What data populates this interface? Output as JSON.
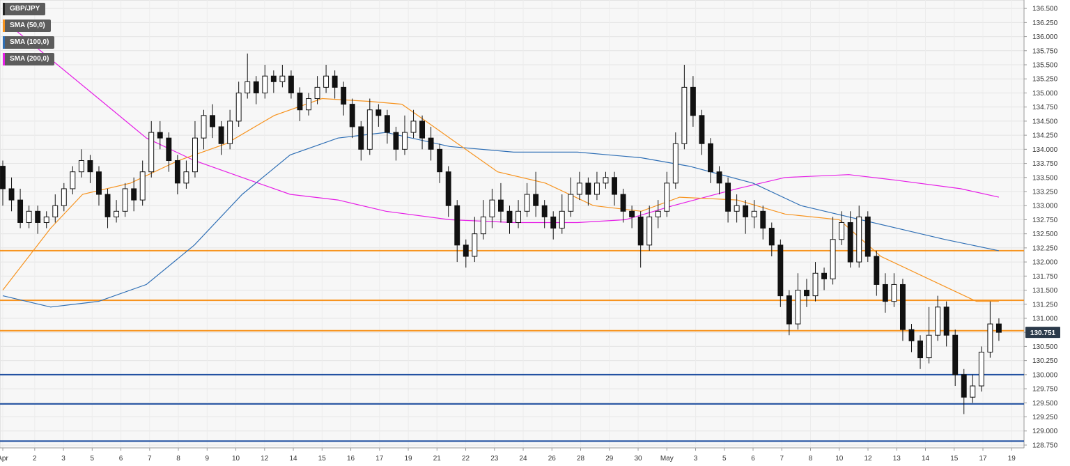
{
  "chart_data": {
    "type": "candlestick",
    "symbol": "GBP/JPY",
    "last_price_label": "130.751",
    "last_price": 130.751,
    "ylim": [
      128.7,
      136.65
    ],
    "y_ticks": [
      "136.500",
      "136.250",
      "136.000",
      "135.750",
      "135.500",
      "135.250",
      "135.000",
      "134.750",
      "134.500",
      "134.250",
      "134.000",
      "133.750",
      "133.500",
      "133.250",
      "133.000",
      "132.750",
      "132.500",
      "132.250",
      "132.000",
      "131.750",
      "131.500",
      "131.250",
      "131.000",
      "130.750",
      "130.500",
      "130.250",
      "130.000",
      "129.750",
      "129.500",
      "129.250",
      "129.000",
      "128.750"
    ],
    "x_ticks": [
      {
        "label": "Apr",
        "index": 0
      },
      {
        "label": "2",
        "index": 10
      },
      {
        "label": "3",
        "index": 19
      },
      {
        "label": "5",
        "index": 28
      },
      {
        "label": "6",
        "index": 37
      },
      {
        "label": "7",
        "index": 46
      },
      {
        "label": "8",
        "index": 55
      },
      {
        "label": "9",
        "index": 64
      },
      {
        "label": "10",
        "index": 73
      },
      {
        "label": "12",
        "index": 82
      },
      {
        "label": "14",
        "index": 91
      },
      {
        "label": "15",
        "index": 100
      },
      {
        "label": "16",
        "index": 109
      },
      {
        "label": "17",
        "index": 118
      },
      {
        "label": "19",
        "index": 127
      },
      {
        "label": "21",
        "index": 136
      },
      {
        "label": "22",
        "index": 145
      },
      {
        "label": "23",
        "index": 154
      },
      {
        "label": "24",
        "index": 163
      },
      {
        "label": "26",
        "index": 172
      },
      {
        "label": "28",
        "index": 181
      },
      {
        "label": "29",
        "index": 190
      },
      {
        "label": "30",
        "index": 199
      },
      {
        "label": "May",
        "index": 208
      },
      {
        "label": "3",
        "index": 217
      },
      {
        "label": "5",
        "index": 226
      },
      {
        "label": "6",
        "index": 235
      },
      {
        "label": "7",
        "index": 244
      },
      {
        "label": "8",
        "index": 253
      },
      {
        "label": "10",
        "index": 262
      },
      {
        "label": "12",
        "index": 271
      },
      {
        "label": "13",
        "index": 280
      },
      {
        "label": "14",
        "index": 289
      },
      {
        "label": "15",
        "index": 298
      },
      {
        "label": "17",
        "index": 307
      },
      {
        "label": "19",
        "index": 316
      }
    ],
    "x_count": 320,
    "legend": [
      {
        "label": "GBP/JPY",
        "color": "#222222"
      },
      {
        "label": "SMA (50,0)",
        "color": "#f7931e"
      },
      {
        "label": "SMA (100,0)",
        "color": "#2f6fb5"
      },
      {
        "label": "SMA (200,0)",
        "color": "#e61ee6"
      }
    ],
    "hlines": [
      {
        "value": 132.2,
        "color": "#f7931e"
      },
      {
        "value": 131.32,
        "color": "#f7931e"
      },
      {
        "value": 130.78,
        "color": "#f7931e"
      },
      {
        "value": 130.0,
        "color": "#1f4fa0"
      },
      {
        "value": 129.48,
        "color": "#1f4fa0"
      },
      {
        "value": 128.82,
        "color": "#1f4fa0"
      }
    ],
    "sma50": [
      [
        0,
        131.5
      ],
      [
        15,
        132.6
      ],
      [
        25,
        133.2
      ],
      [
        40,
        133.4
      ],
      [
        55,
        133.8
      ],
      [
        70,
        134.1
      ],
      [
        85,
        134.6
      ],
      [
        100,
        134.9
      ],
      [
        115,
        134.85
      ],
      [
        125,
        134.8
      ],
      [
        140,
        134.2
      ],
      [
        155,
        133.6
      ],
      [
        170,
        133.4
      ],
      [
        185,
        133.0
      ],
      [
        200,
        132.9
      ],
      [
        212,
        133.15
      ],
      [
        230,
        133.1
      ],
      [
        245,
        132.85
      ],
      [
        262,
        132.75
      ],
      [
        275,
        132.1
      ],
      [
        290,
        131.7
      ],
      [
        305,
        131.3
      ],
      [
        312,
        131.3
      ]
    ],
    "sma100": [
      [
        0,
        131.4
      ],
      [
        15,
        131.2
      ],
      [
        30,
        131.3
      ],
      [
        45,
        131.6
      ],
      [
        60,
        132.3
      ],
      [
        75,
        133.2
      ],
      [
        90,
        133.9
      ],
      [
        105,
        134.2
      ],
      [
        120,
        134.3
      ],
      [
        140,
        134.05
      ],
      [
        160,
        133.95
      ],
      [
        180,
        133.95
      ],
      [
        200,
        133.85
      ],
      [
        215,
        133.7
      ],
      [
        235,
        133.4
      ],
      [
        250,
        133.0
      ],
      [
        265,
        132.8
      ],
      [
        280,
        132.6
      ],
      [
        295,
        132.4
      ],
      [
        312,
        132.2
      ]
    ],
    "sma200": [
      [
        0,
        136.3
      ],
      [
        15,
        135.6
      ],
      [
        30,
        134.9
      ],
      [
        45,
        134.2
      ],
      [
        60,
        133.8
      ],
      [
        75,
        133.5
      ],
      [
        90,
        133.2
      ],
      [
        105,
        133.1
      ],
      [
        120,
        132.9
      ],
      [
        140,
        132.75
      ],
      [
        160,
        132.7
      ],
      [
        180,
        132.7
      ],
      [
        195,
        132.75
      ],
      [
        210,
        133.0
      ],
      [
        230,
        133.3
      ],
      [
        245,
        133.5
      ],
      [
        265,
        133.55
      ],
      [
        280,
        133.45
      ],
      [
        300,
        133.3
      ],
      [
        312,
        133.15
      ]
    ],
    "candles": [
      [
        133.7,
        133.3,
        133.8,
        133.0
      ],
      [
        133.3,
        133.1,
        133.5,
        132.9
      ],
      [
        133.1,
        132.7,
        133.3,
        132.6
      ],
      [
        132.7,
        132.9,
        133.0,
        132.6
      ],
      [
        132.9,
        132.7,
        133.0,
        132.5
      ],
      [
        132.7,
        132.8,
        132.9,
        132.6
      ],
      [
        132.8,
        133.0,
        133.2,
        132.7
      ],
      [
        133.0,
        133.3,
        133.4,
        132.9
      ],
      [
        133.3,
        133.6,
        133.7,
        133.2
      ],
      [
        133.6,
        133.8,
        134.0,
        133.5
      ],
      [
        133.8,
        133.6,
        133.9,
        133.4
      ],
      [
        133.6,
        133.2,
        133.7,
        133.0
      ],
      [
        133.2,
        132.8,
        133.3,
        132.6
      ],
      [
        132.8,
        132.9,
        133.1,
        132.7
      ],
      [
        132.9,
        133.3,
        133.4,
        132.8
      ],
      [
        133.3,
        133.1,
        133.5,
        132.9
      ],
      [
        133.1,
        133.6,
        133.8,
        133.0
      ],
      [
        133.6,
        134.3,
        134.5,
        133.5
      ],
      [
        134.3,
        134.2,
        134.5,
        134.0
      ],
      [
        134.2,
        133.8,
        134.3,
        133.6
      ],
      [
        133.8,
        133.4,
        133.9,
        133.2
      ],
      [
        133.4,
        133.6,
        133.8,
        133.3
      ],
      [
        133.6,
        134.2,
        134.5,
        133.5
      ],
      [
        134.2,
        134.6,
        134.7,
        134.0
      ],
      [
        134.6,
        134.4,
        134.8,
        134.2
      ],
      [
        134.4,
        134.1,
        134.5,
        133.9
      ],
      [
        134.1,
        134.5,
        134.7,
        134.0
      ],
      [
        134.5,
        135.0,
        135.2,
        134.4
      ],
      [
        135.0,
        135.2,
        135.7,
        134.9
      ],
      [
        135.2,
        135.0,
        135.3,
        134.8
      ],
      [
        135.0,
        135.3,
        135.5,
        134.9
      ],
      [
        135.3,
        135.2,
        135.4,
        135.0
      ],
      [
        135.2,
        135.3,
        135.5,
        135.1
      ],
      [
        135.3,
        135.0,
        135.4,
        134.9
      ],
      [
        135.0,
        134.7,
        135.1,
        134.5
      ],
      [
        134.7,
        134.9,
        135.0,
        134.6
      ],
      [
        134.9,
        135.1,
        135.3,
        134.8
      ],
      [
        135.1,
        135.3,
        135.5,
        135.0
      ],
      [
        135.3,
        135.1,
        135.4,
        134.9
      ],
      [
        135.1,
        134.8,
        135.2,
        134.6
      ],
      [
        134.8,
        134.4,
        134.9,
        134.2
      ],
      [
        134.4,
        134.0,
        134.5,
        133.8
      ],
      [
        134.0,
        134.7,
        134.9,
        133.9
      ],
      [
        134.7,
        134.6,
        134.8,
        134.4
      ],
      [
        134.6,
        134.3,
        134.7,
        134.1
      ],
      [
        134.3,
        134.0,
        134.4,
        133.8
      ],
      [
        134.0,
        134.3,
        134.6,
        133.9
      ],
      [
        134.3,
        134.5,
        134.7,
        134.2
      ],
      [
        134.5,
        134.2,
        134.6,
        134.0
      ],
      [
        134.2,
        134.0,
        134.4,
        133.8
      ],
      [
        134.0,
        133.6,
        134.1,
        133.4
      ],
      [
        133.6,
        133.0,
        133.7,
        132.8
      ],
      [
        133.0,
        132.3,
        133.1,
        132.0
      ],
      [
        132.3,
        132.1,
        132.4,
        131.9
      ],
      [
        132.1,
        132.5,
        132.8,
        132.0
      ],
      [
        132.5,
        132.8,
        133.1,
        132.4
      ],
      [
        132.8,
        133.1,
        133.3,
        132.6
      ],
      [
        133.1,
        132.9,
        133.4,
        132.7
      ],
      [
        132.9,
        132.7,
        133.0,
        132.5
      ],
      [
        132.7,
        132.9,
        133.1,
        132.6
      ],
      [
        132.9,
        133.2,
        133.4,
        132.8
      ],
      [
        133.2,
        133.0,
        133.6,
        132.8
      ],
      [
        133.0,
        132.8,
        133.1,
        132.6
      ],
      [
        132.8,
        132.6,
        132.9,
        132.4
      ],
      [
        132.6,
        132.9,
        133.2,
        132.5
      ],
      [
        132.9,
        133.2,
        133.5,
        132.8
      ],
      [
        133.2,
        133.4,
        133.6,
        133.1
      ],
      [
        133.4,
        133.2,
        133.5,
        133.0
      ],
      [
        133.2,
        133.4,
        133.6,
        133.1
      ],
      [
        133.4,
        133.5,
        133.6,
        133.3
      ],
      [
        133.5,
        133.2,
        133.6,
        133.0
      ],
      [
        133.2,
        132.9,
        133.3,
        132.7
      ],
      [
        132.9,
        132.8,
        133.0,
        132.6
      ],
      [
        132.8,
        132.3,
        132.9,
        131.9
      ],
      [
        132.3,
        132.8,
        133.0,
        132.2
      ],
      [
        132.8,
        132.9,
        133.1,
        132.6
      ],
      [
        132.9,
        133.4,
        133.6,
        132.8
      ],
      [
        133.4,
        134.1,
        134.3,
        133.3
      ],
      [
        134.1,
        135.1,
        135.5,
        134.0
      ],
      [
        135.1,
        134.6,
        135.3,
        134.4
      ],
      [
        134.6,
        134.1,
        134.7,
        133.9
      ],
      [
        134.1,
        133.6,
        134.2,
        133.4
      ],
      [
        133.6,
        133.4,
        133.7,
        133.2
      ],
      [
        133.4,
        132.9,
        133.5,
        132.7
      ],
      [
        132.9,
        133.0,
        133.2,
        132.7
      ],
      [
        133.0,
        132.8,
        133.1,
        132.5
      ],
      [
        132.8,
        132.9,
        133.1,
        132.6
      ],
      [
        132.9,
        132.6,
        133.0,
        132.4
      ],
      [
        132.6,
        132.3,
        132.7,
        132.1
      ],
      [
        132.3,
        131.4,
        132.4,
        131.2
      ],
      [
        131.4,
        130.9,
        131.5,
        130.7
      ],
      [
        130.9,
        131.5,
        131.8,
        130.8
      ],
      [
        131.5,
        131.4,
        131.7,
        131.2
      ],
      [
        131.4,
        131.8,
        132.0,
        131.3
      ],
      [
        131.8,
        131.7,
        131.9,
        131.5
      ],
      [
        131.7,
        132.4,
        132.8,
        131.6
      ],
      [
        132.4,
        132.7,
        132.9,
        132.3
      ],
      [
        132.7,
        132.0,
        132.9,
        131.9
      ],
      [
        132.0,
        132.8,
        133.0,
        131.9
      ],
      [
        132.8,
        132.1,
        132.9,
        132.0
      ],
      [
        132.1,
        131.6,
        132.2,
        131.4
      ],
      [
        131.6,
        131.3,
        131.8,
        131.1
      ],
      [
        131.3,
        131.6,
        131.8,
        131.2
      ],
      [
        131.6,
        130.8,
        131.7,
        130.6
      ],
      [
        130.8,
        130.6,
        130.9,
        130.4
      ],
      [
        130.6,
        130.3,
        130.7,
        130.1
      ],
      [
        130.3,
        130.7,
        131.2,
        130.2
      ],
      [
        130.7,
        131.2,
        131.4,
        130.6
      ],
      [
        131.2,
        130.7,
        131.3,
        130.5
      ],
      [
        130.7,
        130.0,
        130.8,
        129.8
      ],
      [
        130.0,
        129.6,
        130.1,
        129.3
      ],
      [
        129.6,
        129.8,
        130.0,
        129.5
      ],
      [
        129.8,
        130.4,
        130.5,
        129.7
      ],
      [
        130.4,
        130.9,
        131.3,
        130.3
      ],
      [
        130.9,
        130.751,
        131.0,
        130.6
      ]
    ]
  }
}
